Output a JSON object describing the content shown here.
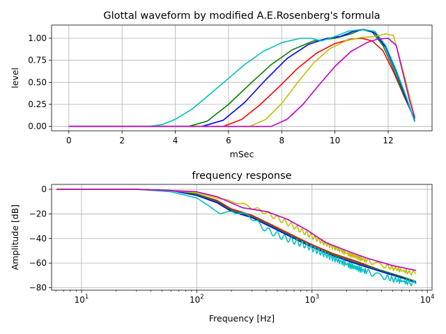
{
  "chart_data": [
    {
      "type": "line",
      "title": "Glottal waveform by modified A.E.Rosenberg's formula",
      "xlabel": "mSec",
      "ylabel": "level",
      "xlim": [
        -0.65,
        13.65
      ],
      "ylim": [
        -0.05,
        1.15
      ],
      "xscale": "linear",
      "grid": true,
      "xticks": [
        0,
        2,
        4,
        6,
        8,
        10,
        12
      ],
      "xtick_labels": [
        "0",
        "2",
        "4",
        "6",
        "8",
        "10",
        "12"
      ],
      "yticks": [
        0.0,
        0.25,
        0.5,
        0.75,
        1.0
      ],
      "ytick_labels": [
        "0.00",
        "0.25",
        "0.50",
        "0.75",
        "1.00"
      ],
      "series": [
        {
          "color": "#ff0000",
          "x": [
            0,
            5.8,
            6.5,
            7.2,
            7.9,
            8.6,
            9.3,
            10.0,
            10.6,
            11.0,
            11.4,
            11.8,
            12.2,
            12.6,
            13.0
          ],
          "y": [
            0,
            0,
            0.08,
            0.25,
            0.45,
            0.66,
            0.83,
            0.94,
            0.99,
            1.0,
            0.97,
            0.86,
            0.62,
            0.34,
            0.08
          ]
        },
        {
          "color": "#008000",
          "x": [
            0,
            4.5,
            5.2,
            6.0,
            6.8,
            7.6,
            8.4,
            9.2,
            10.0,
            10.6,
            11.0,
            11.4,
            11.8,
            12.2,
            12.6,
            13.0
          ],
          "y": [
            0,
            0,
            0.06,
            0.25,
            0.48,
            0.7,
            0.87,
            0.97,
            1.0,
            1.05,
            1.1,
            1.07,
            0.92,
            0.65,
            0.35,
            0.08
          ]
        },
        {
          "color": "#0000ff",
          "x": [
            0,
            5.0,
            5.8,
            6.6,
            7.4,
            8.2,
            9.0,
            9.7,
            10.2,
            10.7,
            11.1,
            11.5,
            11.9,
            12.3,
            12.7,
            13.0
          ],
          "y": [
            0,
            0,
            0.07,
            0.27,
            0.53,
            0.77,
            0.93,
            1.0,
            1.02,
            1.08,
            1.1,
            1.06,
            0.9,
            0.62,
            0.3,
            0.06
          ]
        },
        {
          "color": "#00bfbf",
          "x": [
            0,
            3.0,
            3.5,
            4.0,
            4.6,
            5.2,
            5.9,
            6.6,
            7.3,
            8.0,
            8.7,
            9.1,
            9.5,
            10.0,
            10.5,
            11.0,
            11.5,
            11.9,
            12.3,
            12.7,
            13.0
          ],
          "y": [
            0,
            0,
            0.02,
            0.08,
            0.19,
            0.34,
            0.52,
            0.7,
            0.85,
            0.95,
            1.0,
            1.0,
            0.97,
            1.02,
            1.08,
            1.1,
            1.08,
            0.92,
            0.64,
            0.32,
            0.05
          ]
        },
        {
          "color": "#bfbf00",
          "x": [
            0,
            6.8,
            7.4,
            8.0,
            8.6,
            9.2,
            9.8,
            10.4,
            11.0,
            11.5,
            11.9,
            12.2,
            12.5,
            12.8,
            13.0
          ],
          "y": [
            0,
            0,
            0.08,
            0.26,
            0.5,
            0.72,
            0.88,
            0.97,
            1.01,
            1.02,
            1.05,
            1.03,
            0.7,
            0.35,
            0.1
          ]
        },
        {
          "color": "#bf00bf",
          "x": [
            0,
            7.6,
            8.2,
            8.8,
            9.4,
            10.0,
            10.6,
            11.2,
            11.6,
            12.0,
            12.3,
            12.6,
            12.8,
            13.0
          ],
          "y": [
            0,
            0,
            0.08,
            0.25,
            0.47,
            0.68,
            0.85,
            0.95,
            0.99,
            1.0,
            0.92,
            0.55,
            0.3,
            0.1
          ]
        }
      ]
    },
    {
      "type": "line",
      "title": "frequency response",
      "xlabel": "Frequency [Hz]",
      "ylabel": "Amplitude [dB]",
      "xlim": [
        5.5,
        11000
      ],
      "ylim": [
        -82,
        4
      ],
      "xscale": "log",
      "grid": true,
      "xticks": [
        10,
        100,
        1000,
        10000
      ],
      "xtick_labels": [
        {
          "base": "10",
          "exp": "1"
        },
        {
          "base": "10",
          "exp": "2"
        },
        {
          "base": "10",
          "exp": "3"
        },
        {
          "base": "10",
          "exp": "4"
        }
      ],
      "yticks": [
        0,
        -20,
        -40,
        -60,
        -80
      ],
      "ytick_labels": [
        "0",
        "−20",
        "−40",
        "−60",
        "−80"
      ],
      "series": [
        {
          "color": "#ff0000",
          "ripple": 0,
          "x": [
            6.1,
            30,
            60,
            100,
            150,
            200,
            300,
            450,
            700,
            1000,
            1500,
            2500,
            4000,
            6000,
            8000
          ],
          "y": [
            0,
            0,
            -1,
            -4,
            -9,
            -16,
            -21,
            -29,
            -38,
            -45,
            -52,
            -59,
            -66,
            -71,
            -75
          ]
        },
        {
          "color": "#008000",
          "ripple": 0,
          "x": [
            6.1,
            30,
            60,
            100,
            150,
            200,
            300,
            450,
            700,
            1000,
            1500,
            2500,
            4000,
            6000,
            8000
          ],
          "y": [
            0,
            0,
            -1,
            -4,
            -10,
            -17,
            -22,
            -30,
            -39,
            -46,
            -53,
            -60,
            -66,
            -71,
            -75
          ]
        },
        {
          "color": "#0000ff",
          "ripple": 0,
          "x": [
            6.1,
            30,
            60,
            100,
            150,
            200,
            300,
            450,
            700,
            1000,
            1500,
            2500,
            4000,
            6000,
            8000
          ],
          "y": [
            0,
            0,
            -1,
            -5,
            -11,
            -18,
            -23,
            -31,
            -40,
            -47,
            -54,
            -61,
            -67,
            -72,
            -76
          ]
        },
        {
          "color": "#00bfbf",
          "ripple": 2.5,
          "x": [
            6.1,
            30,
            60,
            100,
            130,
            160,
            200,
            280,
            400,
            600,
            900,
            1300,
            2000,
            3000,
            5000,
            8000
          ],
          "y": [
            0,
            0,
            -2,
            -7,
            -14,
            -20,
            -18,
            -21,
            -33,
            -40,
            -46,
            -53,
            -61,
            -67,
            -73,
            -77
          ]
        },
        {
          "color": "#bfbf00",
          "ripple": 2,
          "x": [
            6.1,
            30,
            60,
            100,
            150,
            250,
            400,
            600,
            900,
            1300,
            2000,
            3000,
            5000,
            8000
          ],
          "y": [
            0,
            0,
            -1,
            -3,
            -7,
            -12,
            -19,
            -27,
            -36,
            -44,
            -52,
            -58,
            -64,
            -69
          ]
        },
        {
          "color": "#bf00bf",
          "ripple": 0,
          "x": [
            6.1,
            30,
            60,
            100,
            150,
            250,
            400,
            600,
            900,
            1300,
            2000,
            3000,
            5000,
            8000
          ],
          "y": [
            0,
            0,
            -1,
            -2,
            -6,
            -15,
            -18,
            -24,
            -33,
            -43,
            -50,
            -56,
            -62,
            -66
          ]
        }
      ]
    }
  ]
}
